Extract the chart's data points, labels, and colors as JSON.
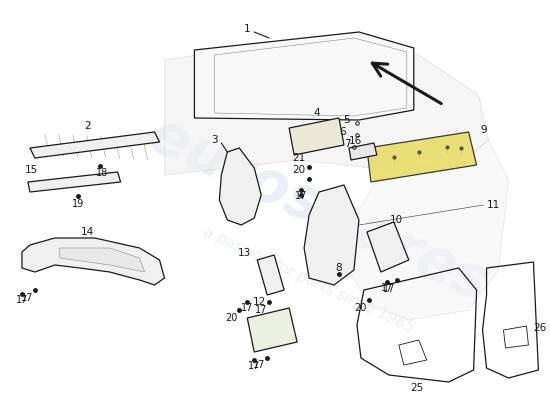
{
  "bg_color": "#ffffff",
  "watermark_text": "eurospares",
  "watermark_sub": "a passion for parts since 1985",
  "watermark_color": "#c8d4e8",
  "watermark_alpha": 0.38,
  "line_color": "#1a1a1a",
  "highlight_yellow": "#e8dc60",
  "highlight_alpha": 0.85,
  "fig_w": 5.5,
  "fig_h": 4.0,
  "dpi": 100
}
